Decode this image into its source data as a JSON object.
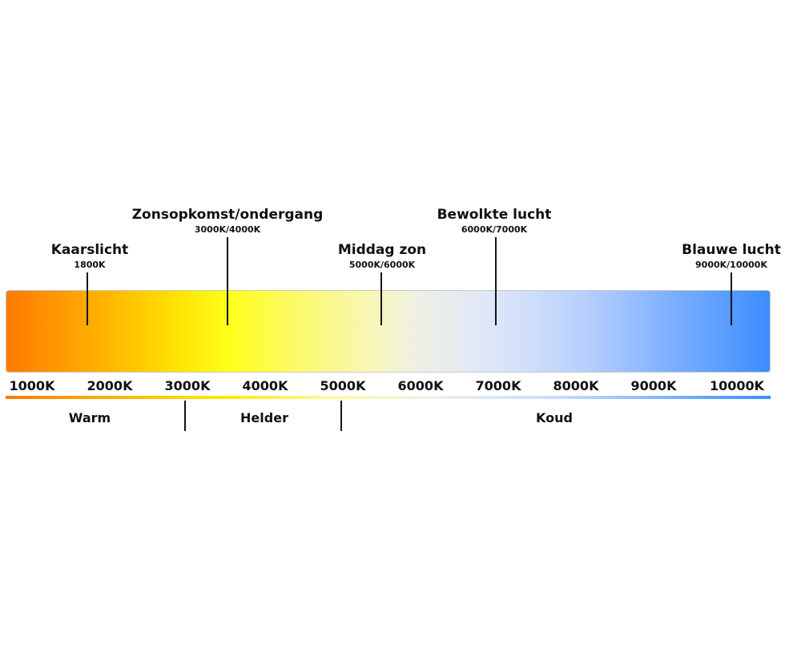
{
  "markers": [
    {
      "title": "Kaarslicht",
      "value": "1800K"
    },
    {
      "title": "Zonsopkomst/ondergang",
      "value": "3000K/4000K"
    },
    {
      "title": "Middag zon",
      "value": "5000K/6000K"
    },
    {
      "title": "Bewolkte lucht",
      "value": "6000K/7000K"
    },
    {
      "title": "Blauwe lucht",
      "value": "9000K/10000K"
    }
  ],
  "ticks": [
    "1000K",
    "2000K",
    "3000K",
    "4000K",
    "5000K",
    "6000K",
    "7000K",
    "8000K",
    "9000K",
    "10000K"
  ],
  "zones": [
    "Warm",
    "Helder",
    "Koud"
  ],
  "colors": {
    "warm": "#ff7a00",
    "yellow": "#ffff19",
    "neutral": "#eef0e6",
    "cool": "#3a8dff"
  }
}
